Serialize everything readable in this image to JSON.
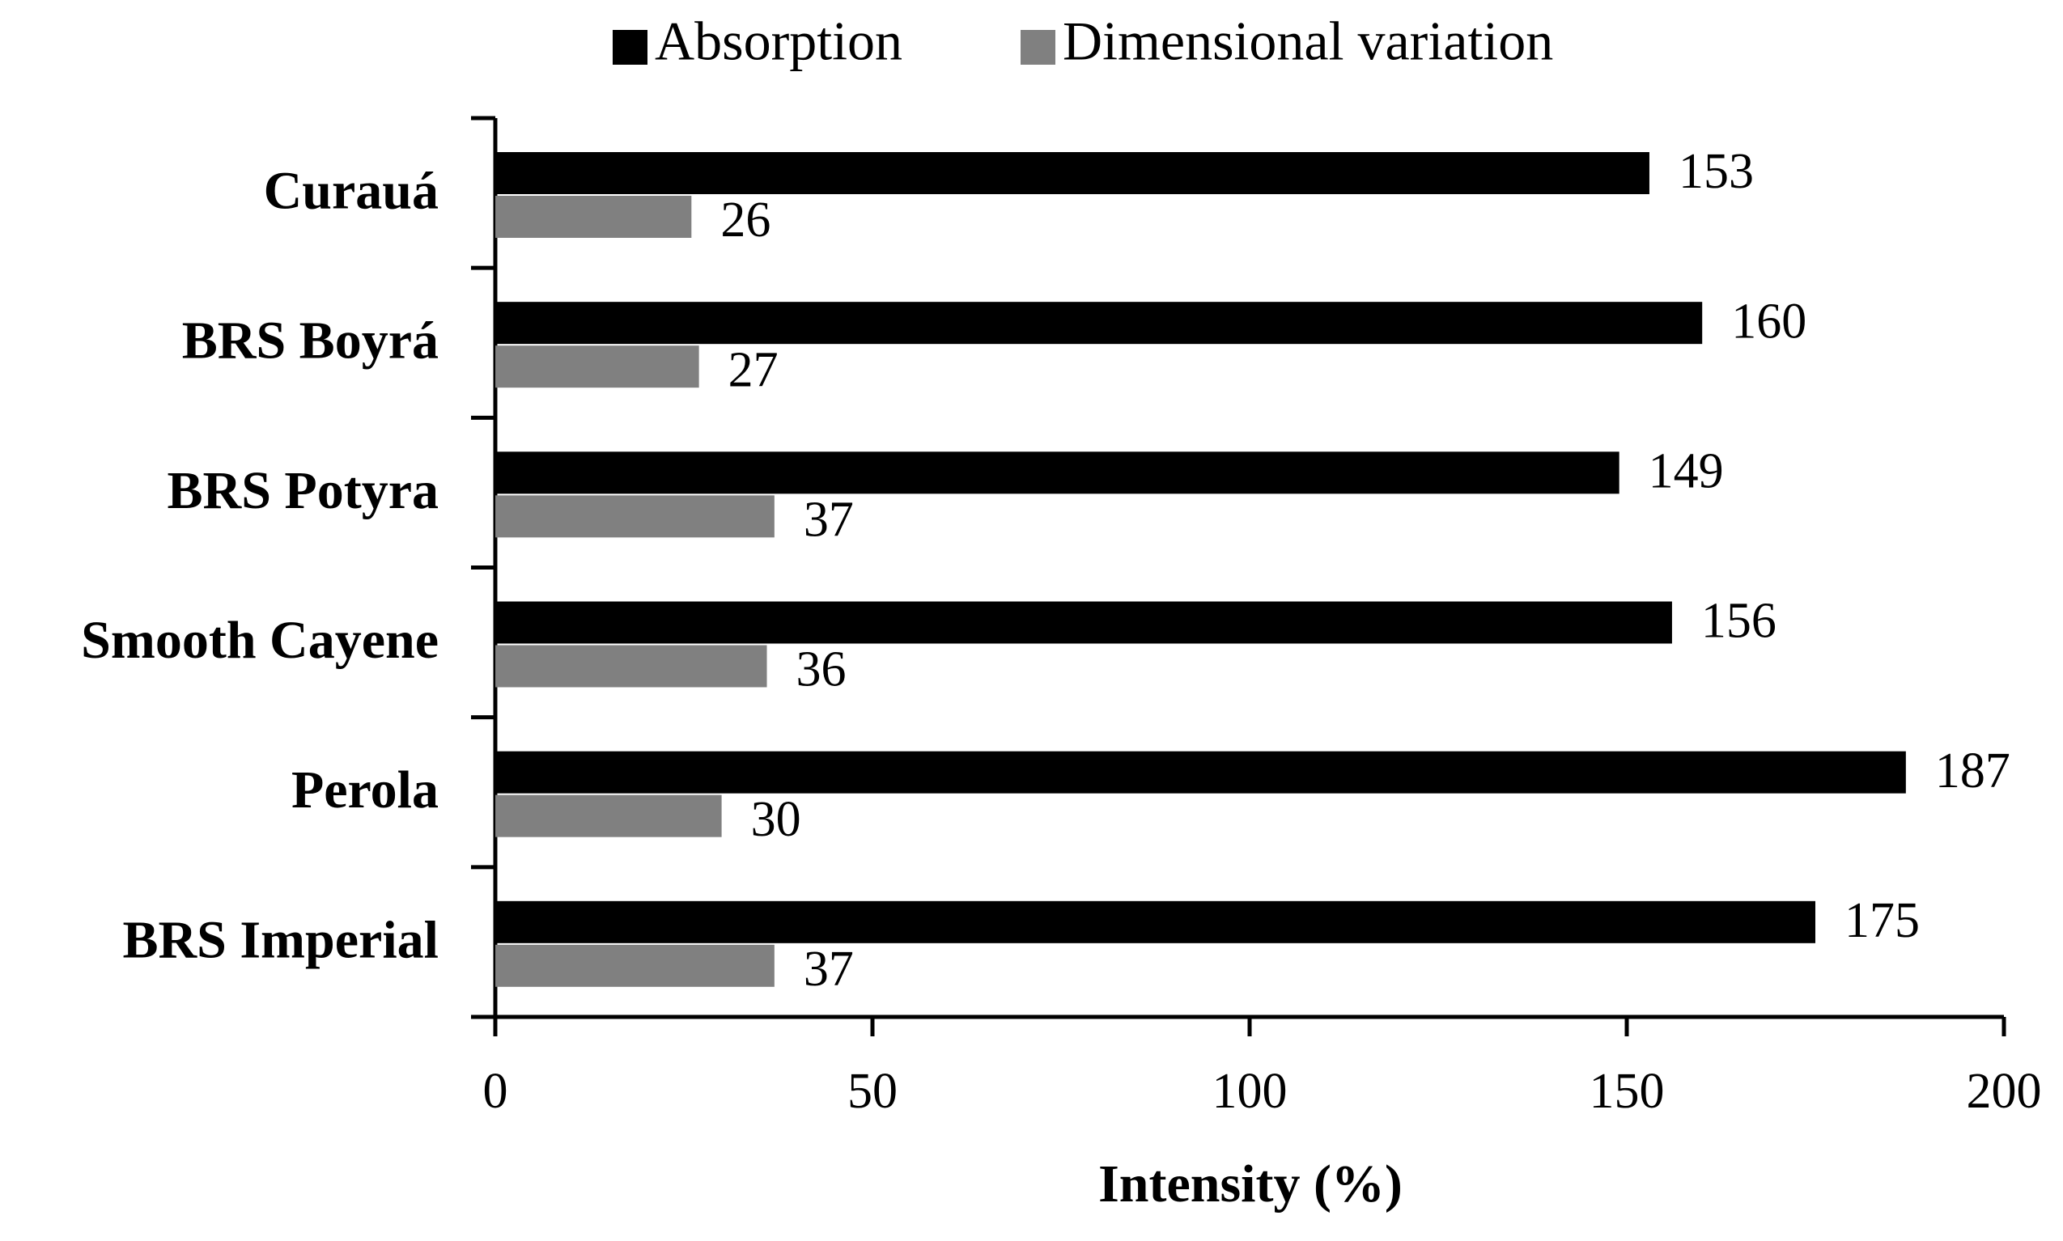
{
  "chart_data": {
    "type": "hbar",
    "x_label": "Intensity (%)",
    "categories": [
      "Curauá",
      "BRS Boyrá",
      "BRS Potyra",
      "Smooth Cayene",
      "Perola",
      "BRS Imperial"
    ],
    "series": [
      {
        "name": "Absorption",
        "color": "#000000",
        "values": [
          153,
          160,
          149,
          156,
          187,
          175
        ]
      },
      {
        "name": "Dimensional variation",
        "color": "#808080",
        "values": [
          26,
          27,
          37,
          36,
          30,
          37
        ]
      }
    ],
    "xlim": [
      0,
      200
    ],
    "xticks": [
      0,
      50,
      100,
      150,
      200
    ],
    "legend": "top"
  }
}
